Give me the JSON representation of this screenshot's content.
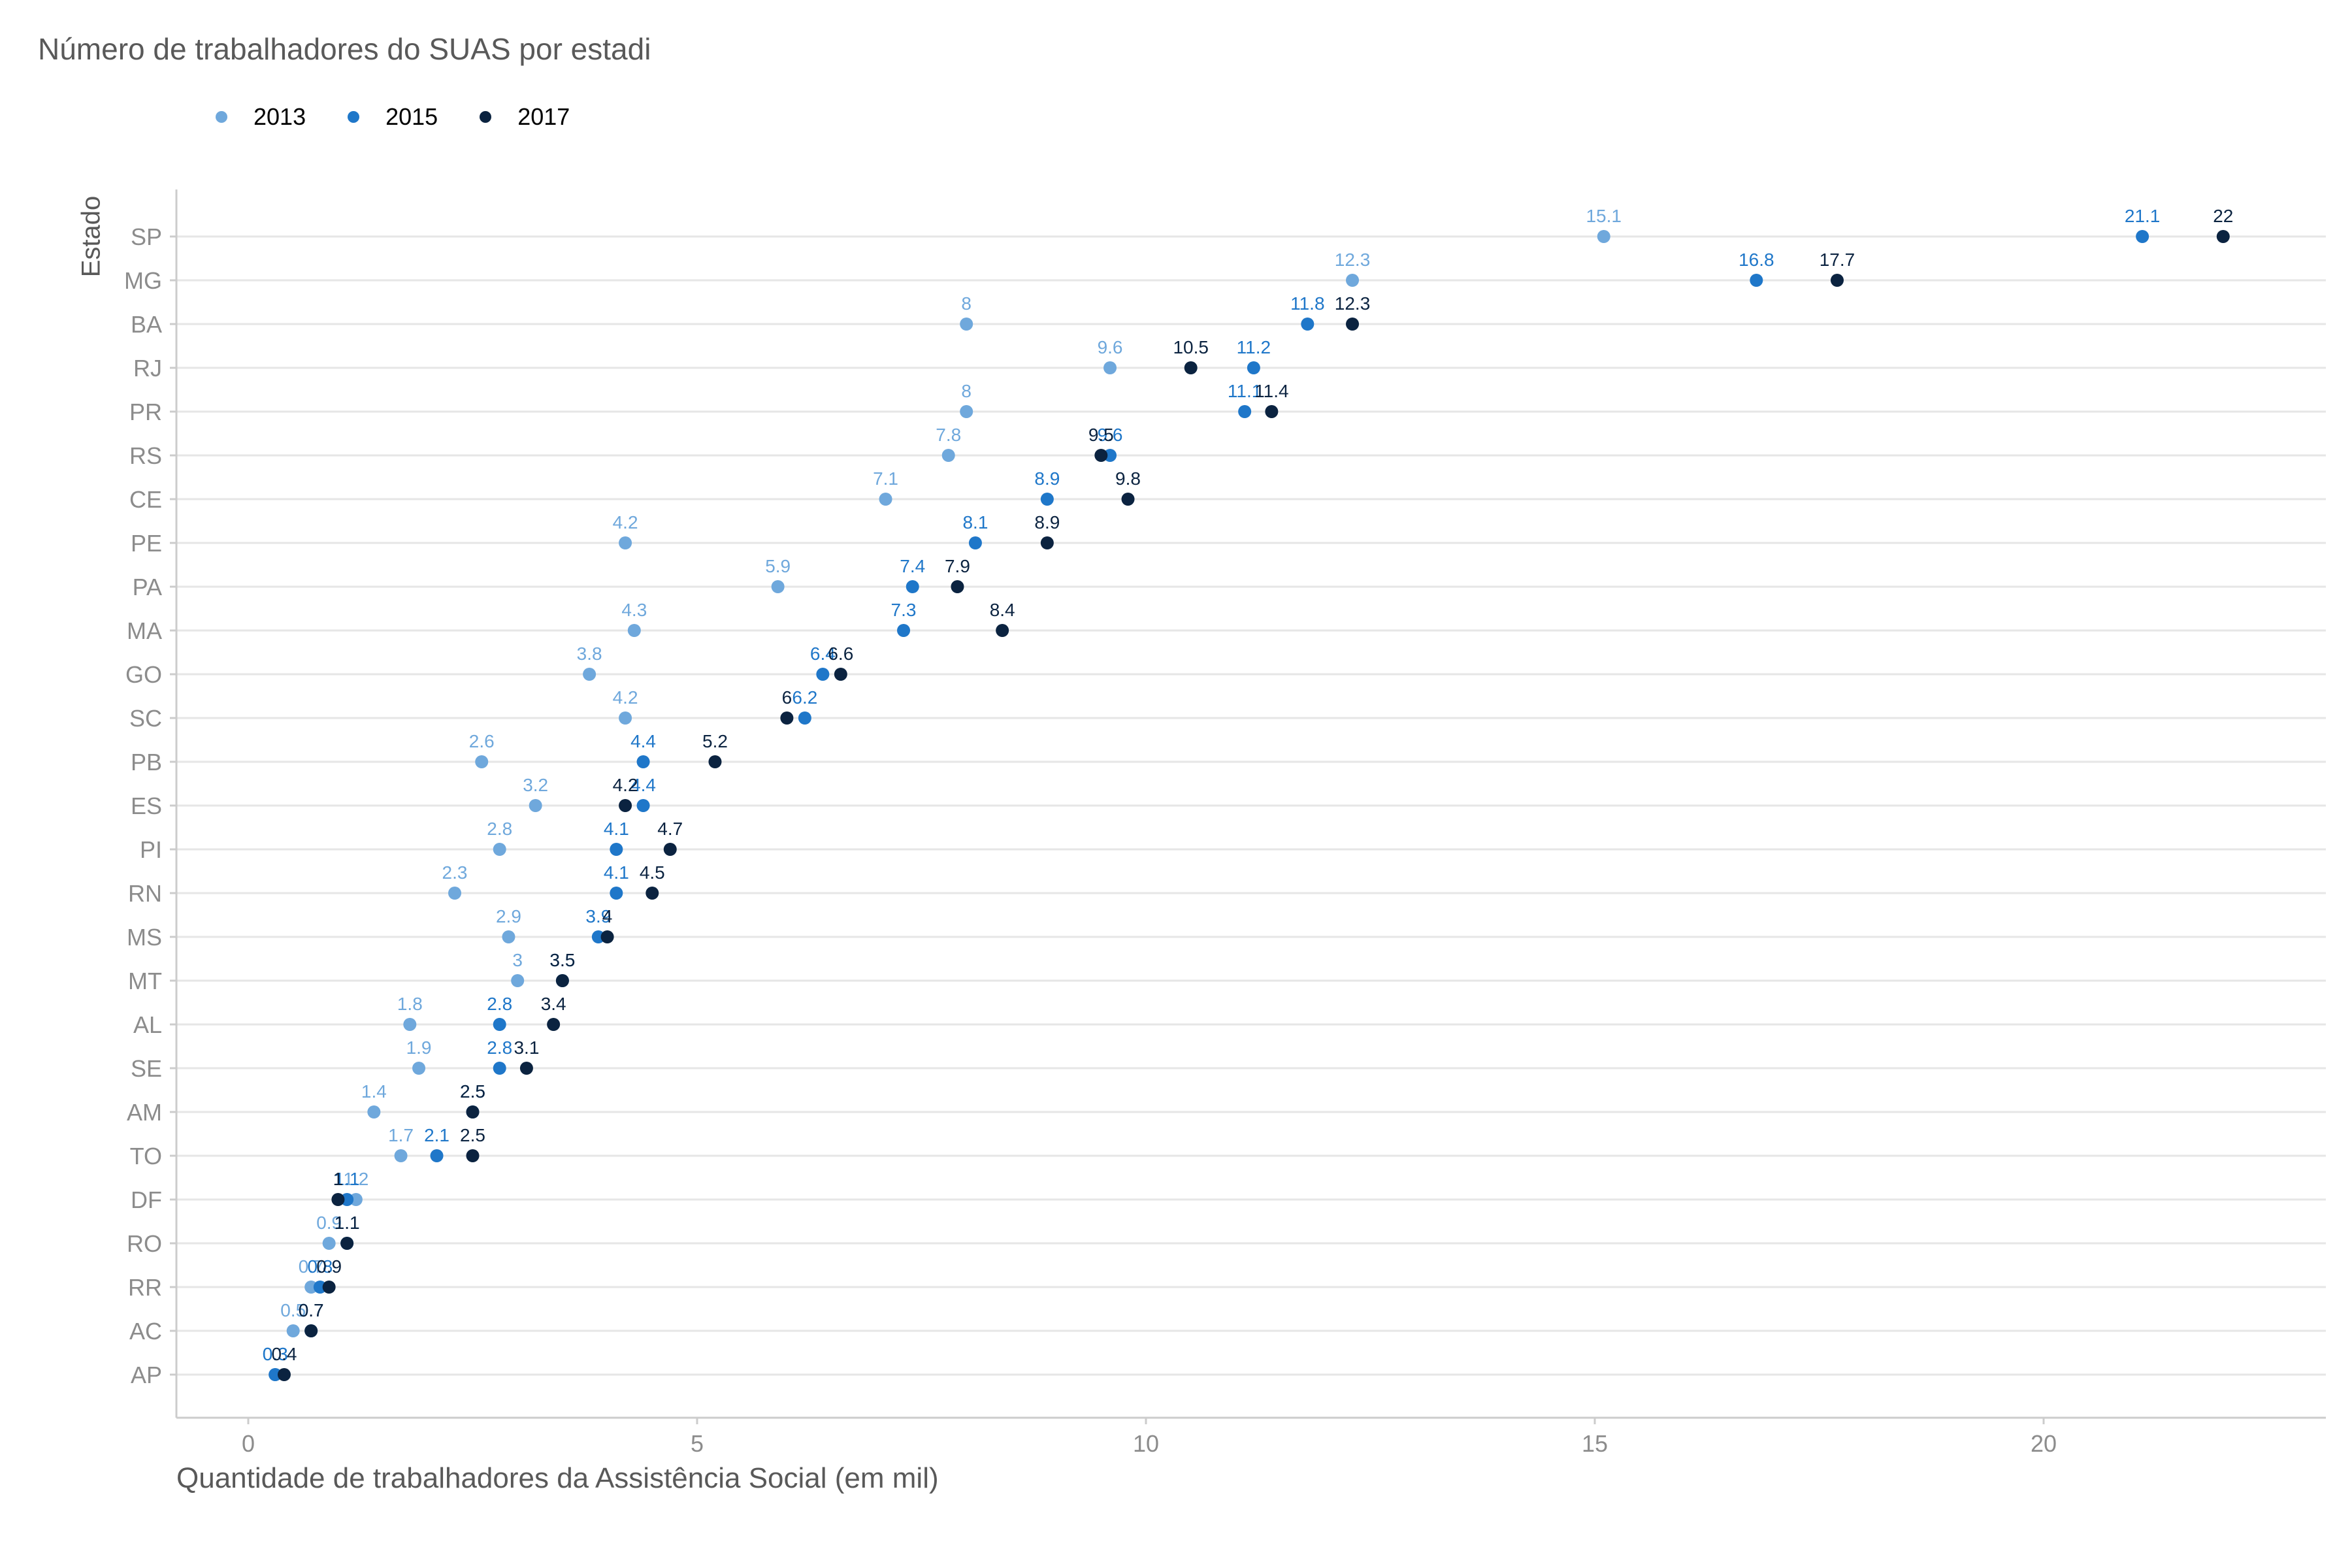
{
  "chart_data": {
    "type": "scatter",
    "title": "Número de trabalhadores do SUAS por estadi",
    "xlabel": "Quantidade de trabalhadores da Assistência Social (em mil)",
    "ylabel": "Estado",
    "xlim": [
      -0.8,
      23.1
    ],
    "x_ticks": [
      0,
      5,
      10,
      15,
      20
    ],
    "grid": "horizontal major",
    "legend_position": "top-left",
    "categories": [
      "SP",
      "MG",
      "BA",
      "RJ",
      "PR",
      "RS",
      "CE",
      "PE",
      "PA",
      "MA",
      "GO",
      "SC",
      "PB",
      "ES",
      "PI",
      "RN",
      "MS",
      "MT",
      "AL",
      "SE",
      "AM",
      "TO",
      "DF",
      "RO",
      "RR",
      "AC",
      "AP"
    ],
    "series": [
      {
        "name": "2013",
        "color": "#6FA8DC",
        "values": [
          15.1,
          12.3,
          8,
          9.6,
          8,
          7.8,
          7.1,
          4.2,
          5.9,
          4.3,
          3.8,
          4.2,
          2.6,
          3.2,
          2.8,
          2.3,
          2.9,
          3,
          1.8,
          1.9,
          1.4,
          1.7,
          1.2,
          0.9,
          0.7,
          0.5,
          0.3
        ],
        "labels": [
          "15.1",
          "12.3",
          "8",
          "9.6",
          "8",
          "7.8",
          "7.1",
          "4.2",
          "5.9",
          "4.3",
          "3.8",
          "4.2",
          "2.6",
          "3.2",
          "2.8",
          "2.3",
          "2.9",
          "3",
          "1.8",
          "1.9",
          "1.4",
          "1.7",
          "1.2",
          "0.9",
          "0.7",
          "0.5",
          "0.3"
        ]
      },
      {
        "name": "2015",
        "color": "#1F77C9",
        "values": [
          21.1,
          16.8,
          11.8,
          11.2,
          11.1,
          9.6,
          8.9,
          8.1,
          7.4,
          7.3,
          6.4,
          6.2,
          4.4,
          4.4,
          4.1,
          4.1,
          3.9,
          3.5,
          2.8,
          2.8,
          2.5,
          2.1,
          1.1,
          1.1,
          0.8,
          0.7,
          0.3
        ],
        "labels": [
          "21.1",
          "16.8",
          "11.8",
          "11.2",
          "11.1",
          "9.6",
          "8.9",
          "8.1",
          "7.4",
          "7.3",
          "6.4",
          "6.2",
          "4.4",
          "4.4",
          "4.1",
          "4.1",
          "3.9",
          "3.5",
          "2.8",
          "2.8",
          "2.5",
          "2.1",
          "1.1",
          "1.1",
          "0.8",
          "0.7",
          "0.3"
        ]
      },
      {
        "name": "2017",
        "color": "#0B2340",
        "values": [
          22,
          17.7,
          12.3,
          10.5,
          11.4,
          9.5,
          9.8,
          8.9,
          7.9,
          8.4,
          6.6,
          6,
          5.2,
          4.2,
          4.7,
          4.5,
          4,
          3.5,
          3.4,
          3.1,
          2.5,
          2.5,
          1,
          1.1,
          0.9,
          0.7,
          0.4
        ],
        "labels": [
          "22",
          "17.7",
          "12.3",
          "10.5",
          "11.4",
          "9.5",
          "9.8",
          "8.9",
          "7.9",
          "8.4",
          "6.6",
          "6",
          "5.2",
          "4.2",
          "4.7",
          "4.5",
          "4",
          "3.5",
          "3.4",
          "3.1",
          "2.5",
          "2.5",
          "1",
          "1.1",
          "0.9",
          "0.7",
          "0.4"
        ]
      }
    ]
  }
}
